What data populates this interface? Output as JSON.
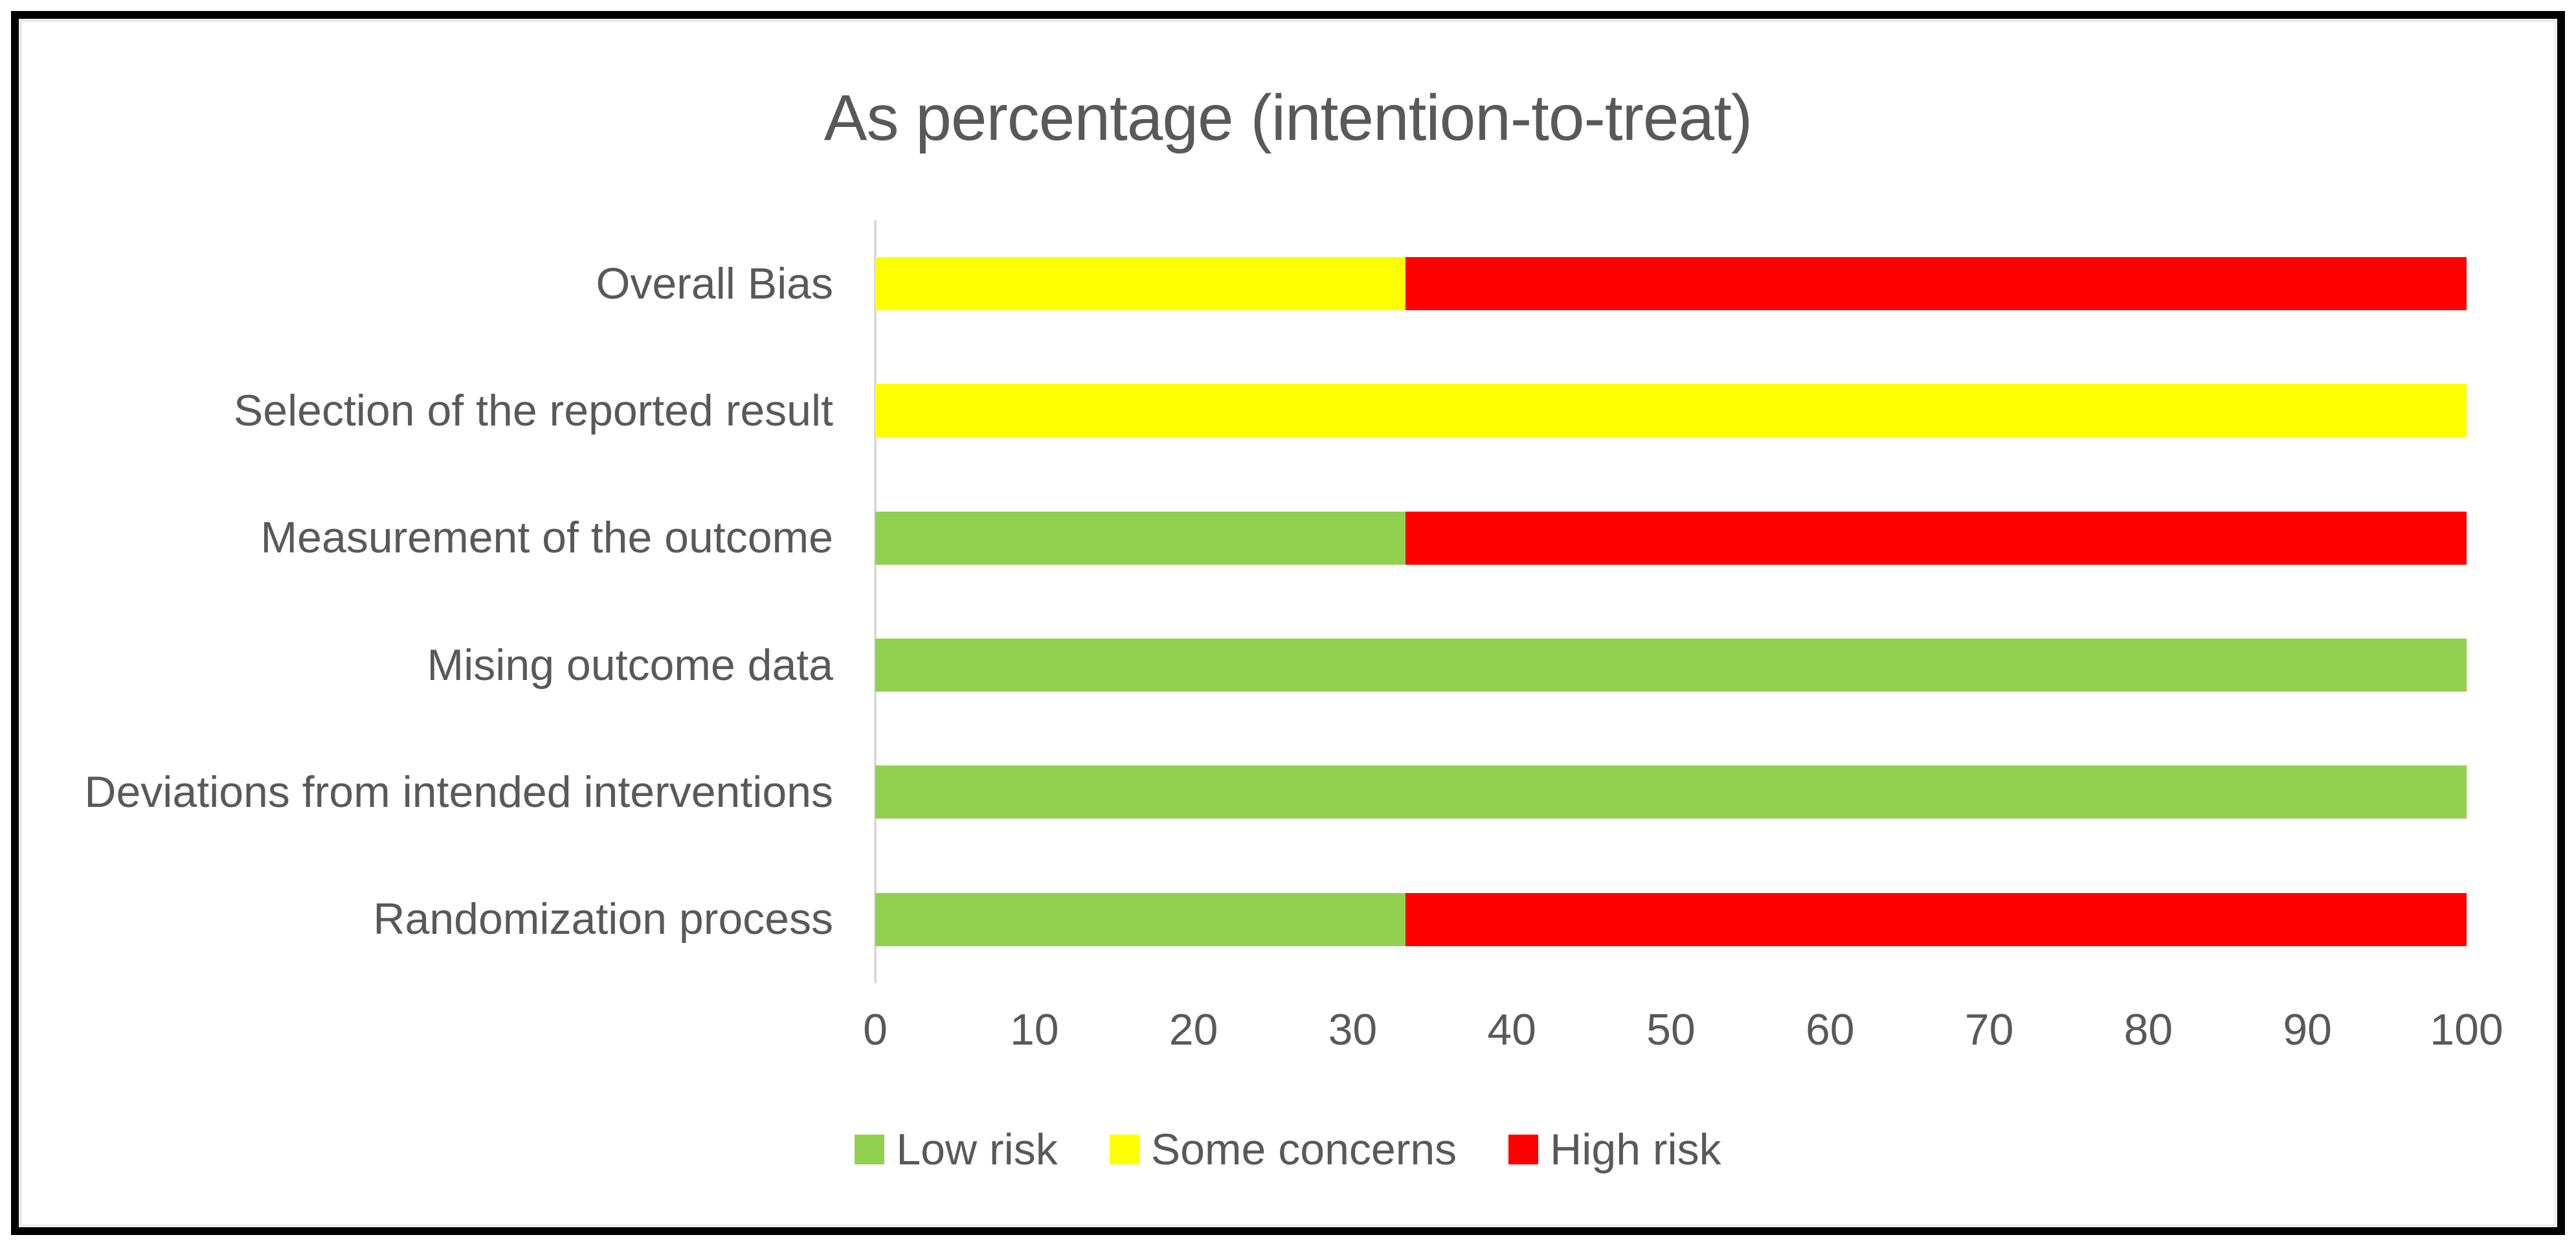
{
  "chart_data": {
    "type": "bar",
    "orientation": "horizontal",
    "stacked": true,
    "title": "As percentage (intention-to-treat)",
    "categories": [
      "Overall Bias",
      "Selection of the reported result",
      "Measurement of the outcome",
      "Mising outcome data",
      "Deviations from intended interventions",
      "Randomization process"
    ],
    "series": [
      {
        "name": "Low risk",
        "color": "#92D050",
        "values": [
          0,
          0,
          33.3,
          100,
          100,
          33.3
        ]
      },
      {
        "name": "Some concerns",
        "color": "#FFFF00",
        "values": [
          33.3,
          100,
          0,
          0,
          0,
          0.0
        ]
      },
      {
        "name": "High risk",
        "color": "#FF0000",
        "values": [
          66.7,
          0,
          66.7,
          0,
          0,
          66.7
        ]
      }
    ],
    "xlim": [
      0,
      100
    ],
    "x_ticks": [
      0,
      10,
      20,
      30,
      40,
      50,
      60,
      70,
      80,
      90,
      100
    ],
    "legend_entries": [
      "Low risk",
      "Some concerns",
      "High risk"
    ],
    "legend_position": "bottom",
    "gridlines": false,
    "axis_line_color": "#D9D9D9",
    "text_color": "#595959",
    "frame_color": "#000000",
    "background_color": "#FFFFFF"
  }
}
